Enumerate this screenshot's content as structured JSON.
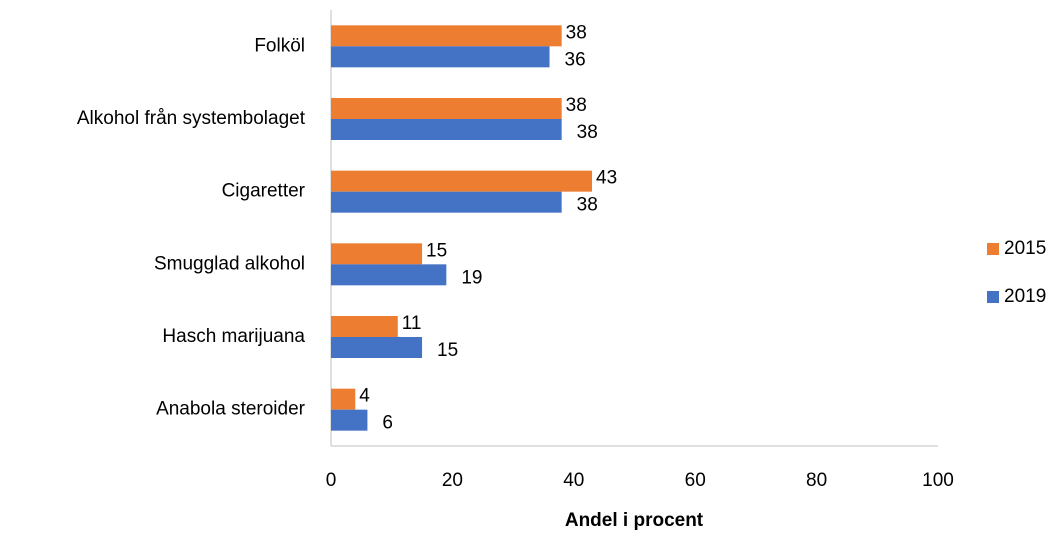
{
  "chart_data": {
    "type": "bar",
    "orientation": "horizontal",
    "x_label": "Andel i procent",
    "categories": [
      "Folköl",
      "Alkohol från systembolaget",
      "Cigaretter",
      "Smugglad alkohol",
      "Hasch marijuana",
      "Anabola steroider"
    ],
    "series": [
      {
        "name": "2015",
        "color": "#ed7d31",
        "values": [
          38,
          38,
          43,
          15,
          11,
          4
        ]
      },
      {
        "name": "2019",
        "color": "#4472c4",
        "values": [
          36,
          38,
          38,
          19,
          15,
          6
        ]
      }
    ],
    "xlim": [
      0,
      100
    ],
    "xticks": [
      0,
      20,
      40,
      60,
      80,
      100
    ],
    "grid": false,
    "legend": "right"
  }
}
